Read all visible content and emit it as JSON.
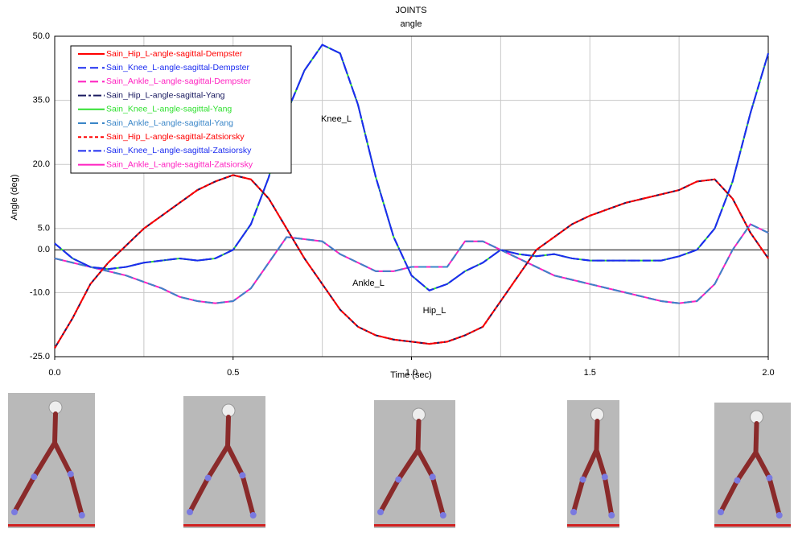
{
  "chart_data": {
    "type": "line",
    "title": "JOINTS",
    "subtitle": "angle",
    "x_label": "Time (sec)",
    "y_label": "Angle (deg)",
    "annotations": [
      "Knee_L",
      "Ankle_L",
      "Hip_L"
    ],
    "x": [
      0,
      0.05,
      0.1,
      0.15,
      0.2,
      0.25,
      0.3,
      0.35,
      0.4,
      0.45,
      0.5,
      0.55,
      0.6,
      0.65,
      0.7,
      0.75,
      0.8,
      0.85,
      0.9,
      0.95,
      1.0,
      1.05,
      1.1,
      1.15,
      1.2,
      1.25,
      1.3,
      1.35,
      1.4,
      1.45,
      1.5,
      1.55,
      1.6,
      1.65,
      1.7,
      1.75,
      1.8,
      1.85,
      1.9,
      1.95,
      2.0
    ],
    "xlim": [
      0,
      2
    ],
    "xticks": [
      {
        "value": 0,
        "label": "0.0"
      },
      {
        "value": 0.5,
        "label": "0.5"
      },
      {
        "value": 1,
        "label": "1.0"
      },
      {
        "value": 1.5,
        "label": "1.5"
      },
      {
        "value": 2,
        "label": "2.0"
      }
    ],
    "minor_xticks": [
      0.25,
      0.75,
      1.25,
      1.75
    ],
    "ylim": [
      -25,
      50
    ],
    "yticks": [
      {
        "value": 50,
        "label": "50.0"
      },
      {
        "value": 35,
        "label": "35.0"
      },
      {
        "value": 20,
        "label": "20.0"
      },
      {
        "value": 5,
        "label": "5.0"
      },
      {
        "value": 0,
        "label": "0.0"
      },
      {
        "value": -10,
        "label": "-10.0"
      },
      {
        "value": -25,
        "label": "-25.0"
      }
    ],
    "grid": true,
    "legend": "upper left",
    "series": [
      {
        "name": "Sain_Hip_L-angle-sagittal-Dempster",
        "color": "#ff0000",
        "dash": "solid",
        "values": [
          -23,
          -16,
          -8,
          -3,
          1,
          5,
          8,
          11,
          14,
          16,
          17.5,
          16.5,
          12,
          5,
          -2,
          -8,
          -14,
          -18,
          -20,
          -21,
          -21.5,
          -22,
          -21.5,
          -20,
          -18,
          -12,
          -6,
          0,
          3,
          6,
          8,
          9.5,
          11,
          12,
          13,
          14,
          16,
          16.5,
          12,
          4,
          -2
        ]
      },
      {
        "name": "Sain_Knee_L-angle-sagittal-Dempster",
        "color": "#1c2cf0",
        "dash": "dashed",
        "values": [
          1.5,
          -2,
          -4,
          -4.5,
          -4,
          -3,
          -2.5,
          -2,
          -2.5,
          -2,
          0,
          6,
          17,
          32,
          42,
          48,
          46,
          34,
          17,
          3,
          -6,
          -9.5,
          -8,
          -5,
          -3,
          0,
          -1,
          -1.5,
          -1,
          -2,
          -2.5,
          -2.5,
          -2.5,
          -2.5,
          -2.5,
          -1.5,
          0,
          5,
          16,
          32,
          46
        ]
      },
      {
        "name": "Sain_Ankle_L-angle-sagittal-Dempster",
        "color": "#ff20c0",
        "dash": "dashed",
        "values": [
          -2,
          -3,
          -4,
          -5,
          -6,
          -7.5,
          -9,
          -11,
          -12,
          -12.5,
          -12,
          -9,
          -3,
          3,
          2.5,
          2,
          -1,
          -3,
          -5,
          -5,
          -4,
          -4,
          -4,
          2,
          2,
          0,
          -2,
          -4,
          -6,
          -7,
          -8,
          -9,
          -10,
          -11,
          -12,
          -12.5,
          -12,
          -8,
          0,
          6,
          4
        ]
      },
      {
        "name": "Sain_Hip_L-angle-sagittal-Yang",
        "color": "#1a1a60",
        "dash": "dashdot",
        "values": [
          -23,
          -16,
          -8,
          -3,
          1,
          5,
          8,
          11,
          14,
          16,
          17.5,
          16.5,
          12,
          5,
          -2,
          -8,
          -14,
          -18,
          -20,
          -21,
          -21.5,
          -22,
          -21.5,
          -20,
          -18,
          -12,
          -6,
          0,
          3,
          6,
          8,
          9.5,
          11,
          12,
          13,
          14,
          16,
          16.5,
          12,
          4,
          -2
        ]
      },
      {
        "name": "Sain_Knee_L-angle-sagittal-Yang",
        "color": "#30e030",
        "dash": "solid",
        "values": [
          1.5,
          -2,
          -4,
          -4.5,
          -4,
          -3,
          -2.5,
          -2,
          -2.5,
          -2,
          0,
          6,
          17,
          32,
          42,
          48,
          46,
          34,
          17,
          3,
          -6,
          -9.5,
          -8,
          -5,
          -3,
          0,
          -1,
          -1.5,
          -1,
          -2,
          -2.5,
          -2.5,
          -2.5,
          -2.5,
          -2.5,
          -1.5,
          0,
          5,
          16,
          32,
          46
        ]
      },
      {
        "name": "Sain_Ankle_L-angle-sagittal-Yang",
        "color": "#3a86c8",
        "dash": "dashed",
        "values": [
          -2,
          -3,
          -4,
          -5,
          -6,
          -7.5,
          -9,
          -11,
          -12,
          -12.5,
          -12,
          -9,
          -3,
          3,
          2.5,
          2,
          -1,
          -3,
          -5,
          -5,
          -4,
          -4,
          -4,
          2,
          2,
          0,
          -2,
          -4,
          -6,
          -7,
          -8,
          -9,
          -10,
          -11,
          -12,
          -12.5,
          -12,
          -8,
          0,
          6,
          4
        ]
      },
      {
        "name": "Sain_Hip_L-angle-sagittal-Zatsiorsky",
        "color": "#ff0000",
        "dash": "dotted",
        "values": [
          -23,
          -16,
          -8,
          -3,
          1,
          5,
          8,
          11,
          14,
          16,
          17.5,
          16.5,
          12,
          5,
          -2,
          -8,
          -14,
          -18,
          -20,
          -21,
          -21.5,
          -22,
          -21.5,
          -20,
          -18,
          -12,
          -6,
          0,
          3,
          6,
          8,
          9.5,
          11,
          12,
          13,
          14,
          16,
          16.5,
          12,
          4,
          -2
        ]
      },
      {
        "name": "Sain_Knee_L-angle-sagittal-Zatsiorsky",
        "color": "#1c2cf0",
        "dash": "dashdot",
        "values": [
          1.5,
          -2,
          -4,
          -4.5,
          -4,
          -3,
          -2.5,
          -2,
          -2.5,
          -2,
          0,
          6,
          17,
          32,
          42,
          48,
          46,
          34,
          17,
          3,
          -6,
          -9.5,
          -8,
          -5,
          -3,
          0,
          -1,
          -1.5,
          -1,
          -2,
          -2.5,
          -2.5,
          -2.5,
          -2.5,
          -2.5,
          -1.5,
          0,
          5,
          16,
          32,
          46
        ]
      },
      {
        "name": "Sain_Ankle_L-angle-sagittal-Zatsiorsky",
        "color": "#ff20c0",
        "dash": "solid",
        "values": [
          -2,
          -3,
          -4,
          -5,
          -6,
          -7.5,
          -9,
          -11,
          -12,
          -12.5,
          -12,
          -9,
          -3,
          3,
          2.5,
          2,
          -1,
          -3,
          -5,
          -5,
          -4,
          -4,
          -4,
          2,
          2,
          0,
          -2,
          -4,
          -6,
          -7,
          -8,
          -9,
          -10,
          -11,
          -12,
          -12.5,
          -12,
          -8,
          0,
          6,
          4
        ]
      }
    ]
  }
}
